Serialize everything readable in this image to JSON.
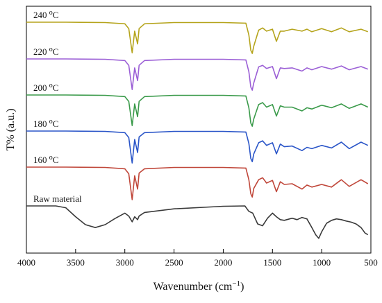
{
  "chart_data": {
    "type": "line",
    "xlabel": "Wavenumber (cm",
    "xlabel_sup": "−1",
    "xlabel_close": ")",
    "ylabel": "T% (a.u.)",
    "xlim": [
      4000,
      500
    ],
    "x_reversed": true,
    "x_ticks": [
      "4000",
      "3500",
      "3000",
      "2500",
      "2000",
      "1500",
      "1000",
      "500"
    ],
    "y_ticks": "none",
    "grid": false,
    "legend": "none; series labels printed above each trace at the left",
    "series_note": "Stacked transmittance spectra; y values are relative (a.u.), each series offset vertically.",
    "series": [
      {
        "name": "240 °C",
        "label_main": "240 ",
        "label_sup": "o",
        "label_unit": "C",
        "color": "#b5a41c",
        "x": [
          4000,
          3600,
          3200,
          3000,
          2960,
          2925,
          2900,
          2870,
          2855,
          2800,
          2500,
          2000,
          1770,
          1740,
          1720,
          1705,
          1690,
          1640,
          1600,
          1560,
          1500,
          1460,
          1420,
          1380,
          1300,
          1200,
          1150,
          1100,
          1000,
          900,
          800,
          720,
          600,
          530
        ],
        "y": [
          1.0,
          1.0,
          0.99,
          0.95,
          0.8,
          0.04,
          0.72,
          0.32,
          0.8,
          0.95,
          0.99,
          0.99,
          0.97,
          0.6,
          0.12,
          0.02,
          0.25,
          0.75,
          0.82,
          0.72,
          0.78,
          0.4,
          0.72,
          0.72,
          0.78,
          0.72,
          0.78,
          0.7,
          0.8,
          0.7,
          0.82,
          0.7,
          0.78,
          0.7
        ]
      },
      {
        "name": "220 °C",
        "label_main": "220 ",
        "label_sup": "o",
        "label_unit": "C",
        "color": "#9b5fd6",
        "x": [
          4000,
          3600,
          3200,
          3000,
          2960,
          2925,
          2900,
          2870,
          2855,
          2800,
          2500,
          2000,
          1770,
          1740,
          1720,
          1705,
          1690,
          1640,
          1600,
          1560,
          1500,
          1460,
          1420,
          1380,
          1300,
          1200,
          1150,
          1100,
          1000,
          900,
          800,
          720,
          600,
          530
        ],
        "y": [
          1.0,
          1.0,
          0.99,
          0.95,
          0.8,
          0.04,
          0.72,
          0.32,
          0.8,
          0.95,
          0.99,
          0.99,
          0.97,
          0.6,
          0.12,
          0.02,
          0.25,
          0.75,
          0.8,
          0.7,
          0.76,
          0.38,
          0.72,
          0.7,
          0.72,
          0.62,
          0.72,
          0.66,
          0.76,
          0.68,
          0.78,
          0.66,
          0.76,
          0.68
        ]
      },
      {
        "name": "200 °C",
        "label_main": "200 ",
        "label_sup": "o",
        "label_unit": "C",
        "color": "#3a9a4a",
        "x": [
          4000,
          3600,
          3200,
          3000,
          2960,
          2925,
          2900,
          2870,
          2855,
          2800,
          2500,
          2000,
          1770,
          1740,
          1720,
          1705,
          1690,
          1640,
          1600,
          1560,
          1500,
          1460,
          1420,
          1380,
          1300,
          1200,
          1150,
          1100,
          1000,
          900,
          800,
          720,
          600,
          530
        ],
        "y": [
          1.0,
          1.0,
          0.99,
          0.95,
          0.8,
          0.04,
          0.72,
          0.32,
          0.8,
          0.95,
          0.99,
          0.99,
          0.97,
          0.6,
          0.12,
          0.02,
          0.25,
          0.7,
          0.76,
          0.62,
          0.7,
          0.34,
          0.66,
          0.62,
          0.62,
          0.5,
          0.6,
          0.56,
          0.68,
          0.6,
          0.72,
          0.58,
          0.72,
          0.62
        ]
      },
      {
        "name": "180 °C",
        "label_main": "180 ",
        "label_sup": "o",
        "label_unit": "C",
        "color": "#2a55c8",
        "x": [
          4000,
          3600,
          3200,
          3000,
          2960,
          2925,
          2900,
          2870,
          2855,
          2800,
          2500,
          2000,
          1770,
          1740,
          1720,
          1705,
          1690,
          1640,
          1600,
          1560,
          1500,
          1460,
          1420,
          1380,
          1300,
          1200,
          1150,
          1100,
          1000,
          900,
          800,
          720,
          600,
          530
        ],
        "y": [
          1.0,
          1.0,
          0.99,
          0.95,
          0.8,
          0.02,
          0.74,
          0.34,
          0.82,
          0.95,
          0.99,
          0.99,
          0.97,
          0.62,
          0.16,
          0.06,
          0.3,
          0.64,
          0.7,
          0.56,
          0.64,
          0.3,
          0.6,
          0.52,
          0.54,
          0.4,
          0.5,
          0.46,
          0.56,
          0.48,
          0.66,
          0.46,
          0.66,
          0.56
        ]
      },
      {
        "name": "160 °C",
        "label_main": "160 ",
        "label_sup": "o",
        "label_unit": "C",
        "color": "#c0473a",
        "x": [
          4000,
          3600,
          3200,
          3000,
          2960,
          2925,
          2900,
          2870,
          2855,
          2800,
          2500,
          2000,
          1770,
          1740,
          1720,
          1705,
          1690,
          1640,
          1600,
          1560,
          1500,
          1460,
          1420,
          1380,
          1300,
          1200,
          1150,
          1100,
          1000,
          900,
          800,
          720,
          600,
          530
        ],
        "y": [
          1.0,
          1.0,
          0.99,
          0.95,
          0.8,
          0.02,
          0.74,
          0.34,
          0.82,
          0.95,
          0.99,
          0.99,
          0.97,
          0.62,
          0.2,
          0.1,
          0.36,
          0.62,
          0.68,
          0.52,
          0.6,
          0.26,
          0.56,
          0.48,
          0.5,
          0.34,
          0.46,
          0.4,
          0.48,
          0.4,
          0.62,
          0.42,
          0.62,
          0.5
        ]
      },
      {
        "name": "Raw material",
        "label_main": "Raw material",
        "label_sup": "",
        "label_unit": "",
        "color": "#3a3a3a",
        "x": [
          4000,
          3700,
          3600,
          3500,
          3400,
          3300,
          3200,
          3100,
          3000,
          2960,
          2925,
          2900,
          2870,
          2855,
          2800,
          2500,
          2000,
          1780,
          1740,
          1700,
          1650,
          1600,
          1550,
          1500,
          1460,
          1420,
          1380,
          1300,
          1250,
          1200,
          1150,
          1100,
          1060,
          1030,
          1000,
          950,
          900,
          850,
          800,
          750,
          700,
          650,
          600,
          560,
          530
        ],
        "y": [
          1.0,
          1.0,
          0.95,
          0.7,
          0.48,
          0.4,
          0.48,
          0.65,
          0.8,
          0.72,
          0.56,
          0.7,
          0.62,
          0.72,
          0.82,
          0.92,
          0.99,
          1.0,
          0.85,
          0.8,
          0.5,
          0.45,
          0.66,
          0.8,
          0.7,
          0.62,
          0.6,
          0.66,
          0.62,
          0.68,
          0.64,
          0.4,
          0.2,
          0.1,
          0.28,
          0.52,
          0.6,
          0.64,
          0.62,
          0.58,
          0.55,
          0.5,
          0.4,
          0.25,
          0.2
        ]
      }
    ]
  }
}
